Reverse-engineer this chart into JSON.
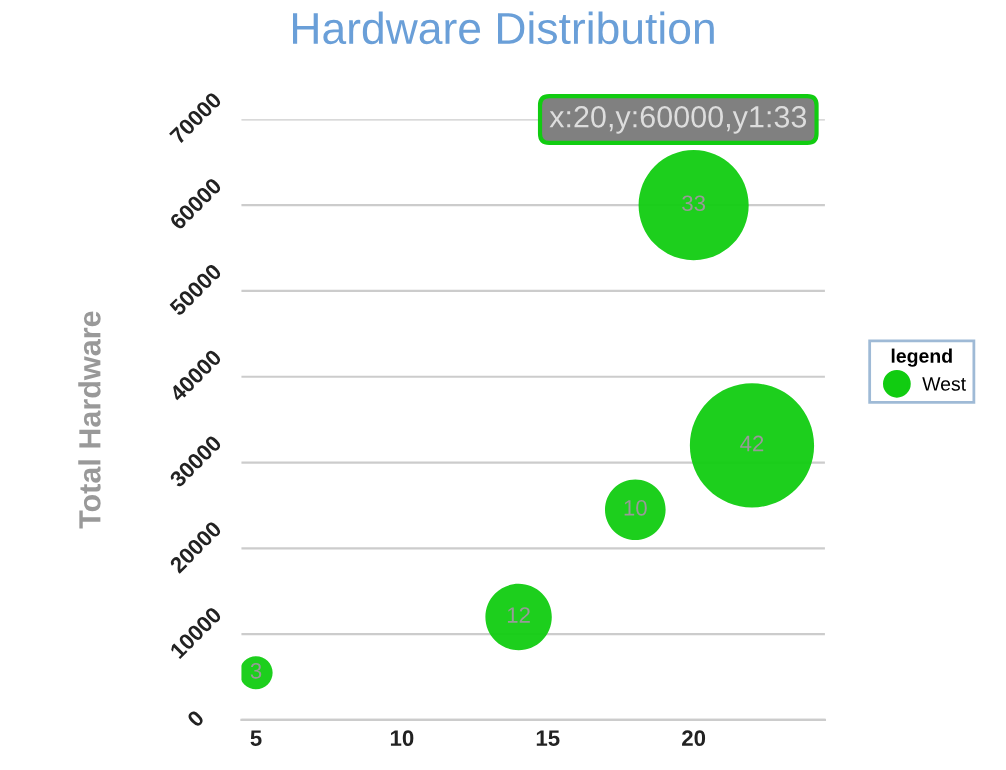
{
  "chart_data": {
    "type": "bubble",
    "title": "Hardware Distribution",
    "ylabel": "Total Hardware",
    "legend_title": "legend",
    "series": [
      {
        "name": "West",
        "color": "#11cc11",
        "x": [
          5,
          14,
          18,
          20,
          22
        ],
        "values": [
          5500,
          12000,
          24500,
          60000,
          32000
        ],
        "sizes": [
          3,
          12,
          10,
          33,
          42
        ],
        "value_labels": [
          "3",
          "12",
          "10",
          "33",
          "42"
        ]
      }
    ],
    "xlim": [
      4.5,
      24.5
    ],
    "xticks": [
      5,
      10,
      15,
      20
    ],
    "ylim": [
      0,
      70000
    ],
    "yticks": [
      0,
      10000,
      20000,
      30000,
      40000,
      50000,
      60000,
      70000
    ],
    "grid": "y",
    "legend": "right",
    "annotations": [
      {
        "text": "x:20,y:60000,y1:33",
        "x": 20,
        "y": 60000
      }
    ]
  }
}
